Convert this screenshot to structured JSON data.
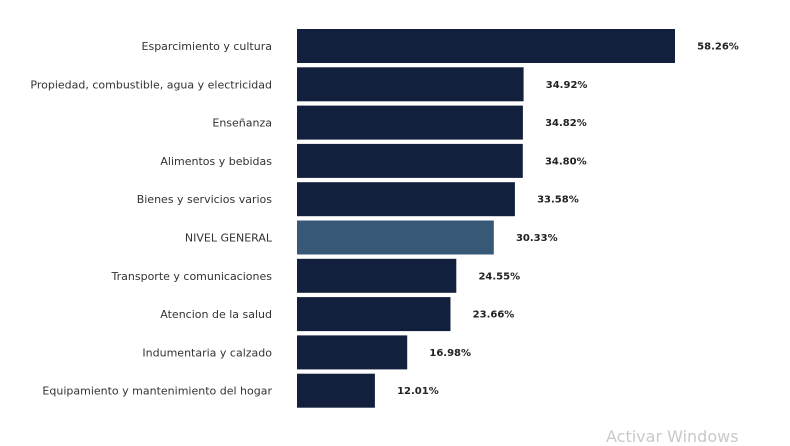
{
  "chart_data": {
    "type": "bar",
    "orientation": "horizontal",
    "categories": [
      "Esparcimiento y cultura",
      "Propiedad, combustible, agua y electricidad",
      "Enseñanza",
      "Alimentos y bebidas",
      "Bienes y servicios varios",
      "NIVEL GENERAL",
      "Transporte y comunicaciones",
      "Atencion de la salud",
      "Indumentaria y calzado",
      "Equipamiento y mantenimiento del hogar"
    ],
    "values": [
      58.26,
      34.92,
      34.82,
      34.8,
      33.58,
      30.33,
      24.55,
      23.66,
      16.98,
      12.01
    ],
    "value_labels": [
      "58.26%",
      "34.92%",
      "34.82%",
      "34.80%",
      "33.58%",
      "30.33%",
      "24.55%",
      "23.66%",
      "16.98%",
      "12.01%"
    ],
    "highlight_category": "NIVEL GENERAL",
    "xlim": [
      0,
      58.26
    ],
    "grid": false,
    "legend": "none",
    "colors": {
      "bar": "#13203d",
      "highlight": "#385878"
    }
  },
  "watermark": {
    "text": "Activar Windows"
  }
}
